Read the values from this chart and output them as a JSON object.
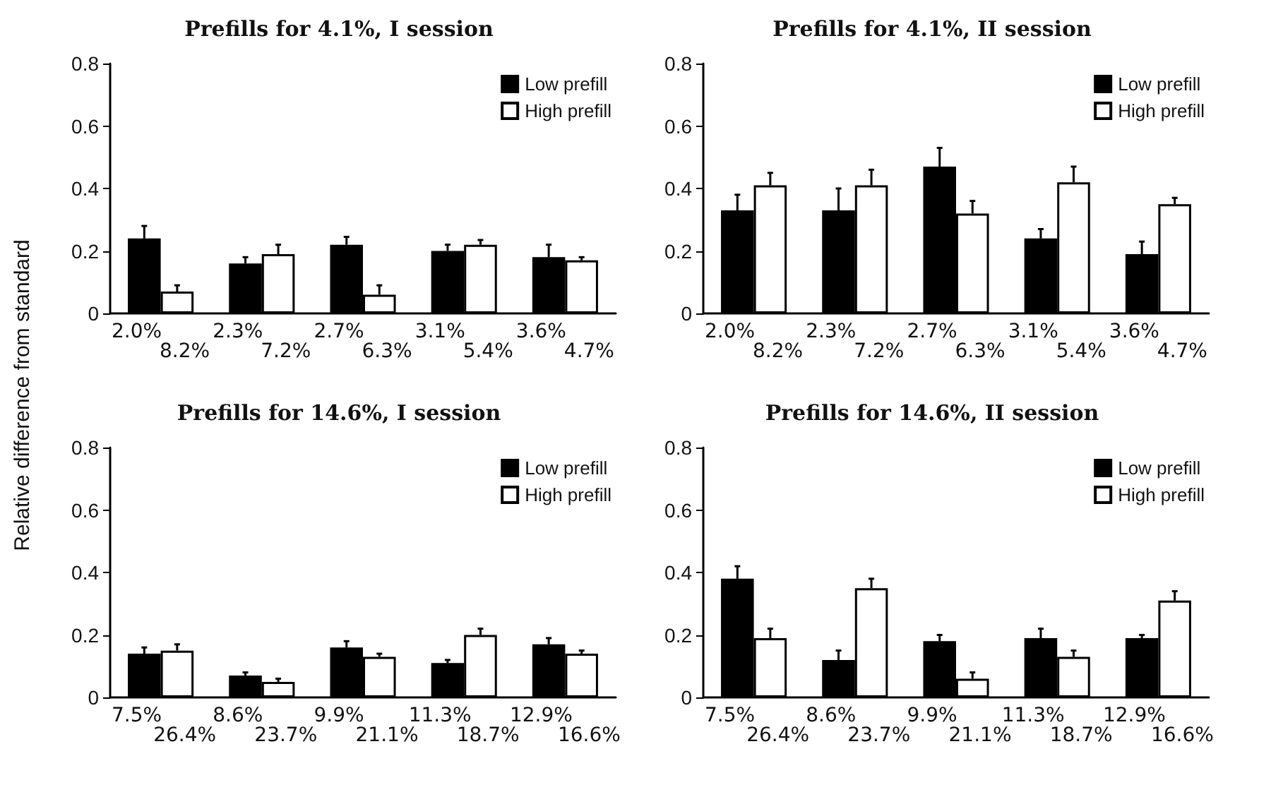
{
  "chart_data": [
    {
      "type": "bar",
      "title": "Prefills for 4.1%, I session",
      "ylabel": "Relative difference from standard",
      "categories": [
        "2.0%\n8.2%",
        "2.3%\n7.2%",
        "2.7%\n6.3%",
        "3.1%\n5.4%",
        "3.6%\n4.7%"
      ],
      "ylim": [
        0,
        0.8
      ],
      "yticks": [
        0,
        0.2,
        0.4,
        0.6,
        0.8
      ],
      "grid": false,
      "legend": "top right",
      "series": [
        {
          "name": "Low prefill",
          "color": "#000000",
          "values": [
            0.24,
            0.16,
            0.22,
            0.2,
            0.18
          ],
          "errors": [
            [
              0.24,
              0.28
            ],
            [
              0.16,
              0.18
            ],
            [
              0.22,
              0.245
            ],
            [
              0.2,
              0.22
            ],
            [
              0.18,
              0.22
            ]
          ]
        },
        {
          "name": "High prefill",
          "color": "#ffffff",
          "values": [
            0.07,
            0.19,
            0.06,
            0.22,
            0.17
          ],
          "errors": [
            [
              0.07,
              0.09
            ],
            [
              0.19,
              0.22
            ],
            [
              0.06,
              0.09
            ],
            [
              0.22,
              0.235
            ],
            [
              0.17,
              0.18
            ]
          ]
        }
      ]
    },
    {
      "type": "bar",
      "title": "Prefills for 4.1%, II session",
      "categories": [
        "2.0%\n8.2%",
        "2.3%\n7.2%",
        "2.7%\n6.3%",
        "3.1%\n5.4%",
        "3.6%\n4.7%"
      ],
      "ylim": [
        0,
        0.8
      ],
      "yticks": [
        0,
        0.2,
        0.4,
        0.6,
        0.8
      ],
      "grid": false,
      "legend": "top right",
      "series": [
        {
          "name": "Low prefill",
          "color": "#000000",
          "values": [
            0.33,
            0.33,
            0.47,
            0.24,
            0.19
          ],
          "errors": [
            [
              0.33,
              0.38
            ],
            [
              0.33,
              0.4
            ],
            [
              0.47,
              0.53
            ],
            [
              0.24,
              0.27
            ],
            [
              0.19,
              0.23
            ]
          ]
        },
        {
          "name": "High prefill",
          "color": "#ffffff",
          "values": [
            0.41,
            0.41,
            0.32,
            0.42,
            0.35
          ],
          "errors": [
            [
              0.41,
              0.45
            ],
            [
              0.41,
              0.46
            ],
            [
              0.32,
              0.36
            ],
            [
              0.42,
              0.47
            ],
            [
              0.35,
              0.37
            ]
          ]
        }
      ]
    },
    {
      "type": "bar",
      "title": "Prefills for 14.6%, I session",
      "categories": [
        "7.5%\n26.4%",
        "8.6%\n23.7%",
        "9.9%\n21.1%",
        "11.3%\n18.7%",
        "12.9%\n16.6%"
      ],
      "ylim": [
        0,
        0.8
      ],
      "yticks": [
        0,
        0.2,
        0.4,
        0.6,
        0.8
      ],
      "grid": false,
      "legend": "top right",
      "series": [
        {
          "name": "Low prefill",
          "color": "#000000",
          "values": [
            0.14,
            0.07,
            0.16,
            0.11,
            0.17
          ],
          "errors": [
            [
              0.14,
              0.16
            ],
            [
              0.07,
              0.08
            ],
            [
              0.16,
              0.18
            ],
            [
              0.11,
              0.12
            ],
            [
              0.17,
              0.19
            ]
          ]
        },
        {
          "name": "High prefill",
          "color": "#ffffff",
          "values": [
            0.15,
            0.05,
            0.13,
            0.2,
            0.14
          ],
          "errors": [
            [
              0.15,
              0.17
            ],
            [
              0.05,
              0.06
            ],
            [
              0.13,
              0.14
            ],
            [
              0.2,
              0.22
            ],
            [
              0.14,
              0.15
            ]
          ]
        }
      ]
    },
    {
      "type": "bar",
      "title": "Prefills for 14.6%, II session",
      "categories": [
        "7.5%\n26.4%",
        "8.6%\n23.7%",
        "9.9%\n21.1%",
        "11.3%\n18.7%",
        "12.9%\n16.6%"
      ],
      "ylim": [
        0,
        0.8
      ],
      "yticks": [
        0,
        0.2,
        0.4,
        0.6,
        0.8
      ],
      "grid": false,
      "legend": "top right",
      "series": [
        {
          "name": "Low prefill",
          "color": "#000000",
          "values": [
            0.38,
            0.12,
            0.18,
            0.19,
            0.19
          ],
          "errors": [
            [
              0.38,
              0.42
            ],
            [
              0.12,
              0.15
            ],
            [
              0.18,
              0.2
            ],
            [
              0.19,
              0.22
            ],
            [
              0.19,
              0.2
            ]
          ]
        },
        {
          "name": "High prefill",
          "color": "#ffffff",
          "values": [
            0.19,
            0.35,
            0.06,
            0.13,
            0.31
          ],
          "errors": [
            [
              0.19,
              0.22
            ],
            [
              0.35,
              0.38
            ],
            [
              0.06,
              0.08
            ],
            [
              0.13,
              0.15
            ],
            [
              0.31,
              0.34
            ]
          ]
        }
      ]
    }
  ]
}
